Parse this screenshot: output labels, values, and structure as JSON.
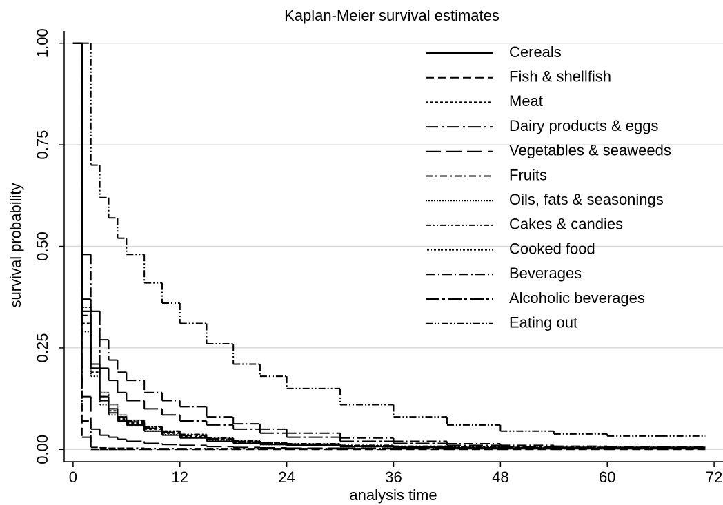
{
  "chart_data": {
    "type": "line",
    "step": true,
    "title": "Kaplan-Meier survival estimates",
    "x_label": "analysis time",
    "y_label": "survival probability",
    "xlim": [
      -1,
      73
    ],
    "ylim": [
      -0.03,
      1.03
    ],
    "xticks": [
      0,
      12,
      24,
      36,
      48,
      60,
      72
    ],
    "yticks": [
      {
        "value": 0,
        "label": "0.00"
      },
      {
        "value": 0.25,
        "label": "0.25"
      },
      {
        "value": 0.5,
        "label": "0.50"
      },
      {
        "value": 0.75,
        "label": "0.75"
      },
      {
        "value": 1,
        "label": "1.00"
      }
    ],
    "grid": true,
    "legend": "top-right",
    "x": [
      0,
      1,
      2,
      3,
      4,
      5,
      6,
      8,
      10,
      12,
      15,
      18,
      21,
      24,
      30,
      36,
      42,
      48,
      54,
      60,
      66,
      71
    ],
    "series": [
      {
        "name": "Cereals",
        "color": "#000000",
        "values": [
          1,
          0.34,
          0.2,
          0.12,
          0.09,
          0.07,
          0.06,
          0.045,
          0.035,
          0.028,
          0.02,
          0.015,
          0.012,
          0.01,
          0.007,
          0.005,
          0.004,
          0.003,
          0.003,
          0.003,
          0.003,
          0.003
        ]
      },
      {
        "name": "Fish & shellfish",
        "color": "#000000",
        "values": [
          1,
          0.03,
          0,
          0,
          0,
          0,
          0,
          0,
          0,
          0,
          0,
          0,
          0,
          0,
          0,
          0,
          0,
          0,
          0,
          0,
          0,
          0
        ]
      },
      {
        "name": "Meat",
        "color": "#000000",
        "values": [
          1,
          0.31,
          0.19,
          0.12,
          0.095,
          0.075,
          0.065,
          0.05,
          0.04,
          0.032,
          0.024,
          0.018,
          0.014,
          0.011,
          0.008,
          0.006,
          0.005,
          0.004,
          0.004,
          0.004,
          0.004,
          0.004
        ]
      },
      {
        "name": "Dairy products & eggs",
        "color": "#000000",
        "values": [
          1,
          0.37,
          0.21,
          0.13,
          0.1,
          0.08,
          0.068,
          0.052,
          0.042,
          0.034,
          0.026,
          0.02,
          0.016,
          0.013,
          0.009,
          0.007,
          0.005,
          0.004,
          0.004,
          0.004,
          0.004,
          0.004
        ]
      },
      {
        "name": "Vegetables & seaweeds",
        "color": "#000000",
        "values": [
          1,
          0.13,
          0.05,
          0.035,
          0.03,
          0.025,
          0.02,
          0.015,
          0.012,
          0.01,
          0.007,
          0.005,
          0.004,
          0.003,
          0.003,
          0.002,
          0.002,
          0.002,
          0.002,
          0.002,
          0.002,
          0.002
        ]
      },
      {
        "name": "Fruits",
        "color": "#000000",
        "values": [
          1,
          0.07,
          0.005,
          0.004,
          0.003,
          0.003,
          0.003,
          0.002,
          0.002,
          0.002,
          0.002,
          0.002,
          0.002,
          0.002,
          0.002,
          0.002,
          0.002,
          0.002,
          0.002,
          0.002,
          0.002,
          0.002
        ]
      },
      {
        "name": "Oils, fats & seasonings",
        "color": "#000000",
        "values": [
          1,
          0.29,
          0.18,
          0.11,
          0.085,
          0.07,
          0.058,
          0.045,
          0.036,
          0.029,
          0.021,
          0.016,
          0.012,
          0.01,
          0.007,
          0.005,
          0.004,
          0.003,
          0.003,
          0.003,
          0.003,
          0.003
        ]
      },
      {
        "name": "Cakes & candies",
        "color": "#000000",
        "values": [
          1,
          0.33,
          0.2,
          0.13,
          0.1,
          0.08,
          0.07,
          0.055,
          0.045,
          0.037,
          0.028,
          0.021,
          0.017,
          0.014,
          0.01,
          0.008,
          0.006,
          0.005,
          0.005,
          0.005,
          0.005,
          0.005
        ]
      },
      {
        "name": "Cooked food",
        "color": "#000000",
        "values": [
          1,
          0.35,
          0.21,
          0.14,
          0.11,
          0.085,
          0.072,
          0.056,
          0.045,
          0.036,
          0.027,
          0.02,
          0.016,
          0.013,
          0.009,
          0.007,
          0.006,
          0.005,
          0.005,
          0.005,
          0.005,
          0.005
        ]
      },
      {
        "name": "Beverages",
        "color": "#000000",
        "values": [
          1,
          0.48,
          0.34,
          0.27,
          0.22,
          0.19,
          0.17,
          0.14,
          0.12,
          0.105,
          0.08,
          0.063,
          0.05,
          0.04,
          0.028,
          0.02,
          0.014,
          0.01,
          0.008,
          0.007,
          0.006,
          0.006
        ]
      },
      {
        "name": "Alcoholic beverages",
        "color": "#000000",
        "values": [
          1,
          0.34,
          0.34,
          0.2,
          0.17,
          0.14,
          0.12,
          0.1,
          0.085,
          0.07,
          0.06,
          0.05,
          0.04,
          0.03,
          0.02,
          0.015,
          0.01,
          0.007,
          0.005,
          0.005,
          0.005,
          0.005
        ]
      },
      {
        "name": "Eating out",
        "color": "#000000",
        "values": [
          1,
          1,
          0.7,
          0.62,
          0.57,
          0.52,
          0.48,
          0.41,
          0.36,
          0.31,
          0.26,
          0.21,
          0.18,
          0.15,
          0.11,
          0.08,
          0.06,
          0.045,
          0.038,
          0.033,
          0.033,
          0.033
        ]
      }
    ]
  }
}
